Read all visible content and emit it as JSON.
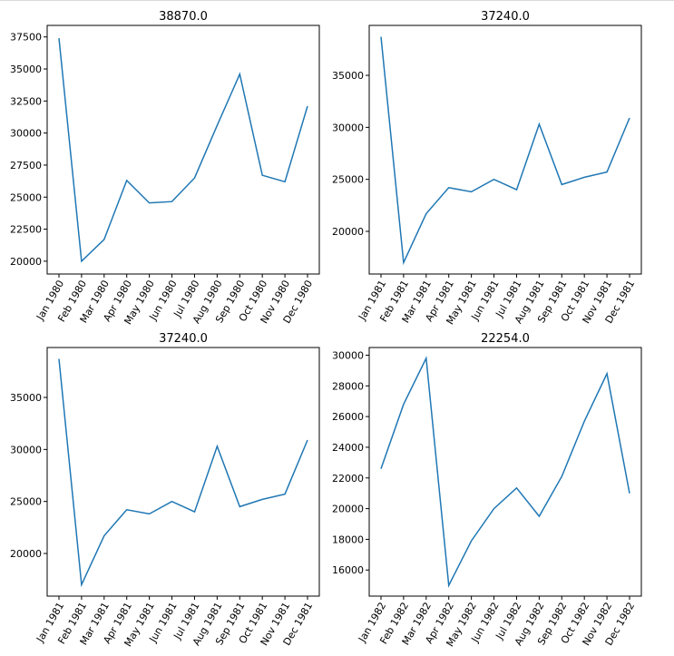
{
  "chart_data": [
    {
      "type": "line",
      "title": "38870.0",
      "categories": [
        "Jan 1980",
        "Feb 1980",
        "Mar 1980",
        "Apr 1980",
        "May 1980",
        "Jun 1980",
        "Jul 1980",
        "Aug 1980",
        "Sep 1980",
        "Oct 1980",
        "Nov 1980",
        "Dec 1980"
      ],
      "values": [
        37400,
        20000,
        21700,
        26300,
        24550,
        24650,
        26500,
        30600,
        34600,
        26700,
        26200,
        32100
      ],
      "ylim": [
        19000,
        38400
      ],
      "yticks": [
        20000,
        22500,
        25000,
        27500,
        30000,
        32500,
        35000,
        37500
      ],
      "ytick_labels": [
        "20000",
        "22500",
        "25000",
        "27500",
        "30000",
        "32500",
        "35000",
        "37500"
      ],
      "color": "#1f77b4"
    },
    {
      "type": "line",
      "title": "37240.0",
      "categories": [
        "Jan 1981",
        "Feb 1981",
        "Mar 1981",
        "Apr 1981",
        "May 1981",
        "Jun 1981",
        "Jul 1981",
        "Aug 1981",
        "Sep 1981",
        "Oct 1981",
        "Nov 1981",
        "Dec 1981"
      ],
      "values": [
        38700,
        17000,
        21700,
        24200,
        23800,
        25000,
        24000,
        30300,
        24500,
        25200,
        25700,
        30900
      ],
      "ylim": [
        15900,
        39800
      ],
      "yticks": [
        20000,
        25000,
        30000,
        35000
      ],
      "ytick_labels": [
        "20000",
        "25000",
        "30000",
        "35000"
      ],
      "color": "#1f77b4"
    },
    {
      "type": "line",
      "title": "37240.0",
      "categories": [
        "Jan 1981",
        "Feb 1981",
        "Mar 1981",
        "Apr 1981",
        "May 1981",
        "Jun 1981",
        "Jul 1981",
        "Aug 1981",
        "Sep 1981",
        "Oct 1981",
        "Nov 1981",
        "Dec 1981"
      ],
      "values": [
        38700,
        17000,
        21700,
        24200,
        23800,
        25000,
        24000,
        30300,
        24500,
        25200,
        25700,
        30900
      ],
      "ylim": [
        15900,
        39800
      ],
      "yticks": [
        20000,
        25000,
        30000,
        35000
      ],
      "ytick_labels": [
        "20000",
        "25000",
        "30000",
        "35000"
      ],
      "color": "#1f77b4"
    },
    {
      "type": "line",
      "title": "22254.0",
      "categories": [
        "Jan 1982",
        "Feb 1982",
        "Mar 1982",
        "Apr 1982",
        "May 1982",
        "Jun 1982",
        "Jul 1982",
        "Aug 1982",
        "Sep 1982",
        "Oct 1982",
        "Nov 1982",
        "Dec 1982"
      ],
      "values": [
        22600,
        26800,
        29800,
        15000,
        17900,
        20000,
        21350,
        19500,
        22100,
        25700,
        28800,
        21000
      ],
      "ylim": [
        14300,
        30500
      ],
      "yticks": [
        16000,
        18000,
        20000,
        22000,
        24000,
        26000,
        28000,
        30000
      ],
      "ytick_labels": [
        "16000",
        "18000",
        "20000",
        "22000",
        "24000",
        "26000",
        "28000",
        "30000"
      ],
      "color": "#1f77b4"
    }
  ]
}
